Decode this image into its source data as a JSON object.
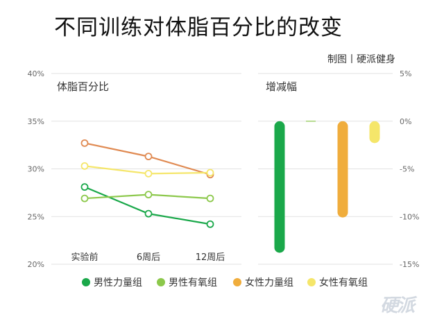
{
  "title": "不同训练对体脂百分比的改变",
  "credit": "制图丨硬派健身",
  "watermark": "硬派",
  "chart_data": [
    {
      "type": "line",
      "panel_label": "体脂百分比",
      "categories": [
        "实验前",
        "6周后",
        "12周后"
      ],
      "ylim": [
        20,
        40
      ],
      "yticks": [
        "20%",
        "25%",
        "30%",
        "35%",
        "40%"
      ],
      "grid": true,
      "series": [
        {
          "name": "男性力量组",
          "color": "#1aa84a",
          "values": [
            28.1,
            25.3,
            24.2
          ]
        },
        {
          "name": "男性有氧组",
          "color": "#8cc84b",
          "values": [
            26.9,
            27.3,
            26.9
          ]
        },
        {
          "name": "女性力量组",
          "color": "#e08a52",
          "values": [
            32.7,
            31.3,
            29.4
          ]
        },
        {
          "name": "女性有氧组",
          "color": "#f5e66a",
          "values": [
            30.3,
            29.5,
            29.6
          ]
        }
      ]
    },
    {
      "type": "bar",
      "panel_label": "增减幅",
      "ylim": [
        -15,
        5
      ],
      "yticks": [
        "5%",
        "0%",
        "-5%",
        "-10%",
        "-15%"
      ],
      "grid": true,
      "series": [
        {
          "name": "男性力量组",
          "color": "#1aa84a",
          "value": -13.8
        },
        {
          "name": "男性有氧组",
          "color": "#8cc84b",
          "value": 0.0
        },
        {
          "name": "女性力量组",
          "color": "#f0ad3c",
          "value": -10.1
        },
        {
          "name": "女性有氧组",
          "color": "#f5e66a",
          "value": -2.3
        }
      ]
    }
  ],
  "legend": [
    {
      "label": "男性力量组",
      "color": "#1aa84a"
    },
    {
      "label": "男性有氧组",
      "color": "#8cc84b"
    },
    {
      "label": "女性力量组",
      "color": "#f0ad3c"
    },
    {
      "label": "女性有氧组",
      "color": "#f5e66a"
    }
  ]
}
